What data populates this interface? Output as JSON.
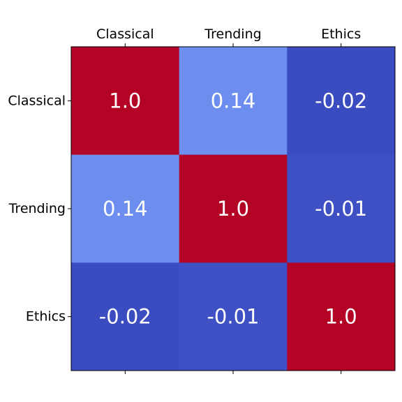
{
  "chart_data": {
    "type": "heatmap",
    "title": "",
    "xlabel": "",
    "ylabel": "",
    "x_tick_position": "top",
    "columns": [
      "Classical",
      "Trending",
      "Ethics"
    ],
    "rows": [
      "Classical",
      "Trending",
      "Ethics"
    ],
    "matrix": [
      [
        1.0,
        0.14,
        -0.02
      ],
      [
        0.14,
        1.0,
        -0.01
      ],
      [
        -0.02,
        -0.01,
        1.0
      ]
    ],
    "cell_labels": [
      [
        "1.0",
        "0.14",
        "-0.02"
      ],
      [
        "0.14",
        "1.0",
        "-0.01"
      ],
      [
        "-0.02",
        "-0.01",
        "1.0"
      ]
    ],
    "colormap": "coolwarm",
    "color_range": [
      -0.02,
      1.0
    ],
    "colors": {
      "low": "#3b4cc0",
      "mid_low": "#6b8ef1",
      "high": "#b40426"
    },
    "grid": false,
    "legend": "none"
  }
}
